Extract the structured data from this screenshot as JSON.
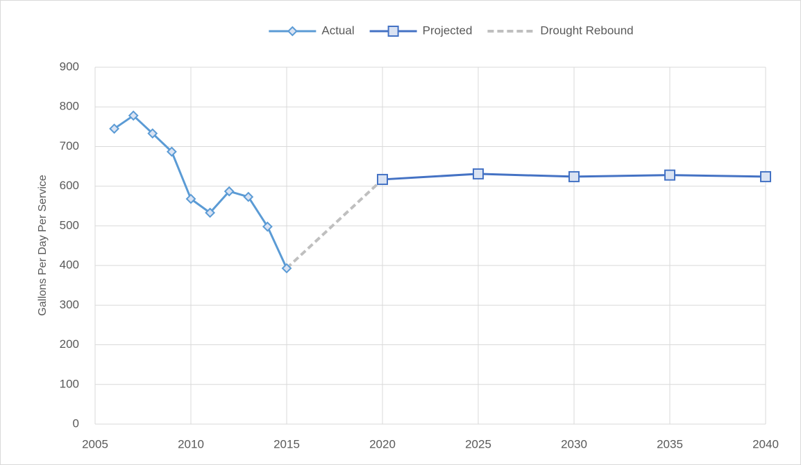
{
  "chart_data": {
    "type": "line",
    "y_label": "Gallons Per Day Per Service",
    "xlim": [
      2005,
      2040
    ],
    "xticks": [
      2005,
      2010,
      2015,
      2020,
      2025,
      2030,
      2035,
      2040
    ],
    "ylim": [
      0,
      900
    ],
    "yticks": [
      0,
      100,
      200,
      300,
      400,
      500,
      600,
      700,
      800,
      900
    ],
    "grid": true,
    "legend": "top",
    "series": [
      {
        "name": "Actual",
        "color": "#5b9bd5",
        "marker": "diamond",
        "line_style": "solid",
        "x": [
          2006,
          2007,
          2008,
          2009,
          2010,
          2011,
          2012,
          2013,
          2014,
          2015
        ],
        "values": [
          745,
          778,
          733,
          687,
          568,
          533,
          587,
          573,
          498,
          393
        ]
      },
      {
        "name": "Projected",
        "color": "#4472c4",
        "marker": "square",
        "line_style": "solid",
        "x": [
          2020,
          2025,
          2030,
          2035,
          2040
        ],
        "values": [
          617,
          631,
          624,
          628,
          624
        ]
      },
      {
        "name": "Drought Rebound",
        "color": "#bfbfbf",
        "marker": "none",
        "line_style": "dashed",
        "x": [
          2015,
          2020
        ],
        "values": [
          393,
          617
        ]
      }
    ]
  }
}
